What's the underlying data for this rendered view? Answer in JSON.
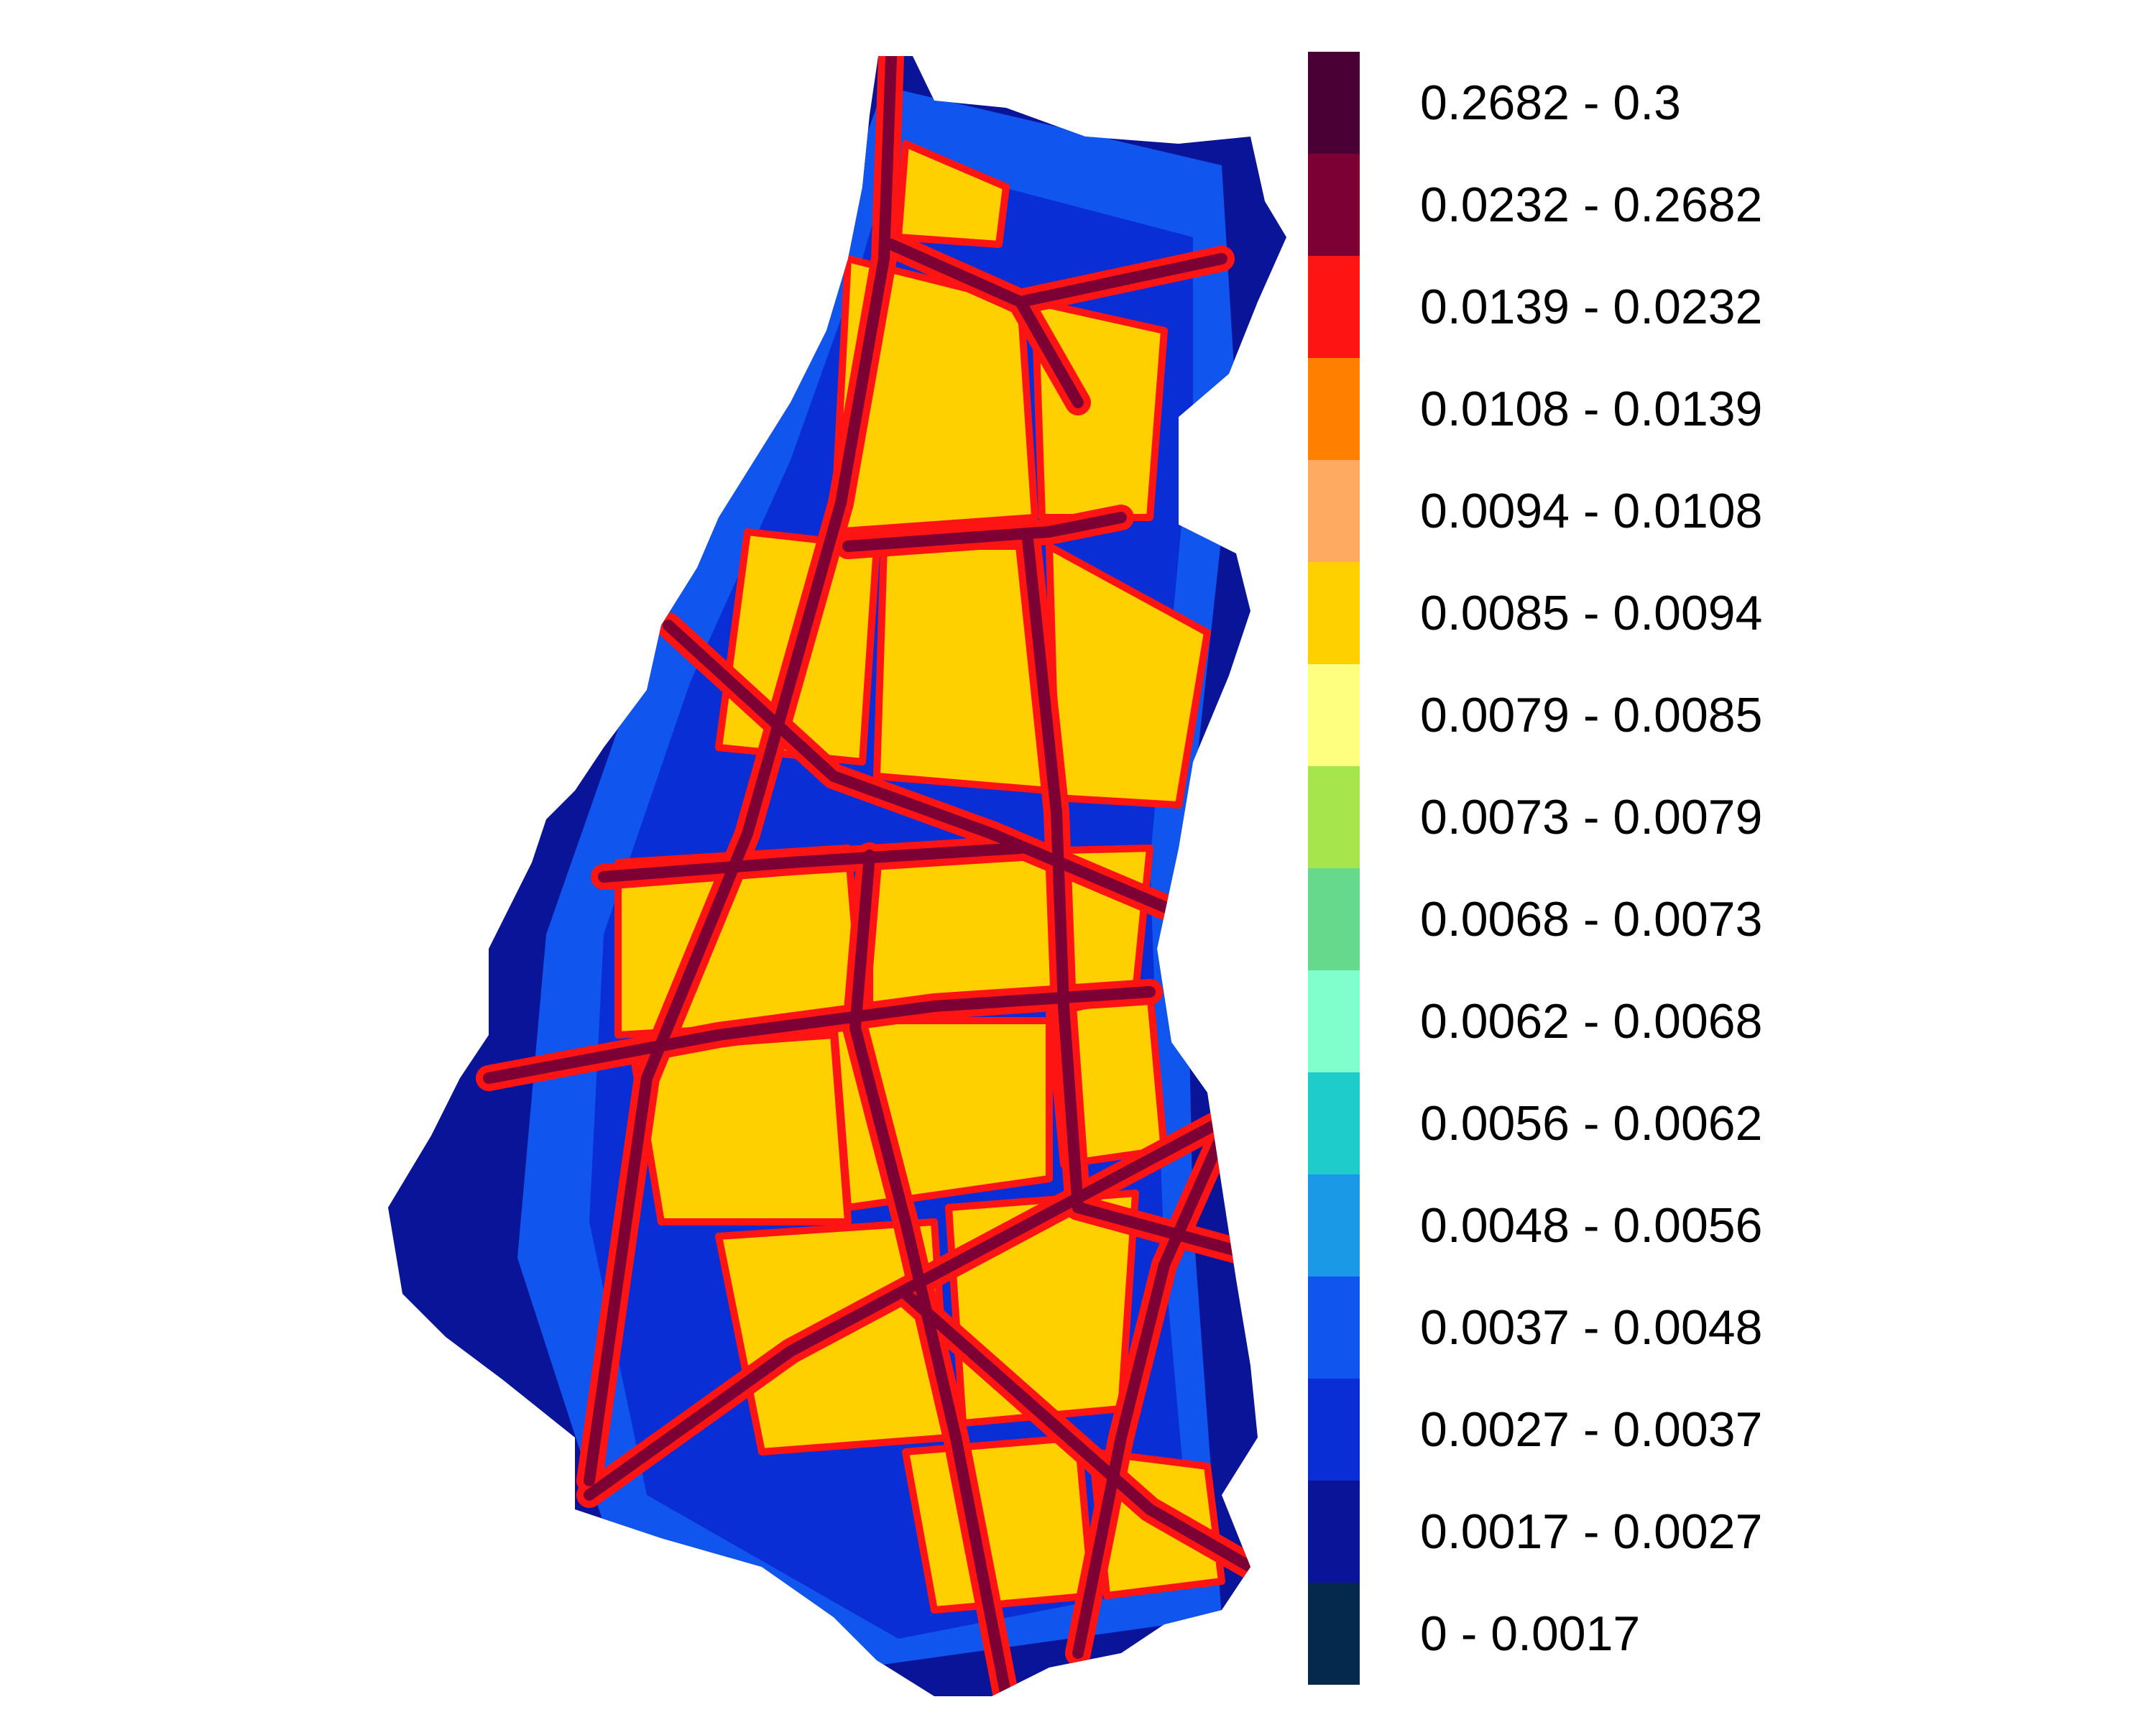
{
  "legend": {
    "classes": [
      {
        "label": "0.2682 - 0.3",
        "color": "#4a0034"
      },
      {
        "label": "0.0232 - 0.2682",
        "color": "#7c0033"
      },
      {
        "label": "0.0139 - 0.0232",
        "color": "#ff1414"
      },
      {
        "label": "0.0108 - 0.0139",
        "color": "#ff7f00"
      },
      {
        "label": "0.0094 - 0.0108",
        "color": "#ffaa60"
      },
      {
        "label": "0.0085 - 0.0094",
        "color": "#ffd000"
      },
      {
        "label": "0.0079 - 0.0085",
        "color": "#ffff7f"
      },
      {
        "label": "0.0073 - 0.0079",
        "color": "#a6e64c"
      },
      {
        "label": "0.0068 - 0.0073",
        "color": "#66d98c"
      },
      {
        "label": "0.0062 - 0.0068",
        "color": "#80ffcc"
      },
      {
        "label": "0.0056 - 0.0062",
        "color": "#1ecccc"
      },
      {
        "label": "0.0048 - 0.0056",
        "color": "#1a99e6"
      },
      {
        "label": "0.0037 - 0.0048",
        "color": "#0f55ee"
      },
      {
        "label": "0.0027 - 0.0037",
        "color": "#0a2ed6"
      },
      {
        "label": "0.0017 - 0.0027",
        "color": "#0a1499"
      },
      {
        "label": "0 - 0.0017",
        "color": "#04294d"
      }
    ]
  },
  "map": {
    "base_color": "#0a2ed6",
    "outer_color": "#0a1499",
    "fringe_color": "#0f55ee",
    "block_color": "#ffd000",
    "block_inner_color": "#80ffcc",
    "road_halo_color": "#ff1414",
    "road_color": "#7c0033"
  }
}
